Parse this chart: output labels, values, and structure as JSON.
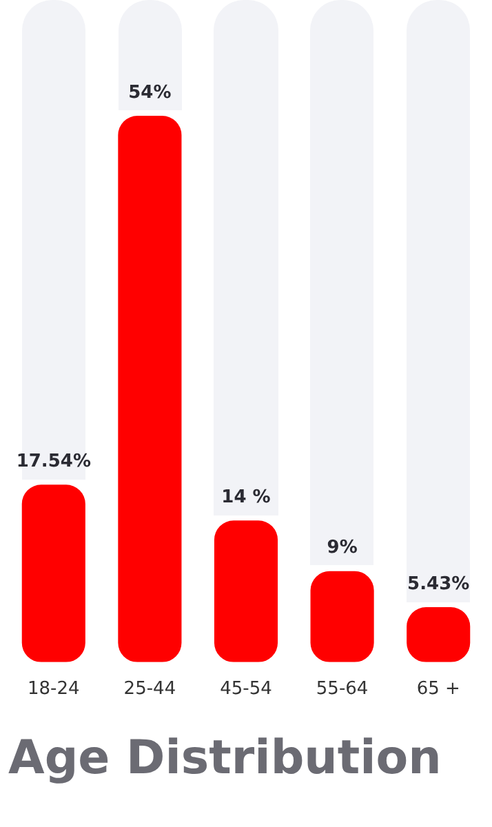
{
  "chart_data": {
    "type": "bar",
    "title": "Age Distribution",
    "categories": [
      "18-24",
      "25-44",
      "45-54",
      "55-64",
      "65 +"
    ],
    "values": [
      17.54,
      54,
      14,
      9,
      5.43
    ],
    "value_labels": [
      "17.54%",
      "54%",
      "14 %",
      "9%",
      "5.43%"
    ],
    "color": "#ff0000",
    "grid": false,
    "tick_labels": "x"
  }
}
